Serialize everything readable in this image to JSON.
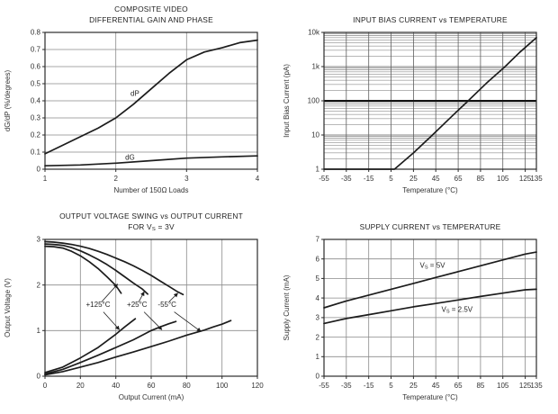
{
  "page": {
    "background": "#ffffff"
  },
  "colors": {
    "curve": "#1c1c1c",
    "grid": "#8a8a8a",
    "grid_minor": "#6f6f6f",
    "grid_bold": "#151515",
    "axis": "#2b2b2b",
    "text": "#333333",
    "title": "#1f1f1f"
  },
  "chart_data": [
    {
      "name": "composite-video-differential-gain-and-phase",
      "type": "line",
      "title_lines": [
        "COMPOSITE VIDEO",
        "DIFFERENTIAL GAIN AND PHASE"
      ],
      "xlabel": "Number of 150Ω Loads",
      "ylabel": "dG/dP (%/degrees)",
      "xscale": "linear",
      "yscale": "linear",
      "xlim": [
        1,
        4
      ],
      "ylim": [
        0,
        0.8
      ],
      "xticks": [
        1,
        2,
        3,
        4
      ],
      "xtick_labels": [
        "1",
        "2",
        "3",
        "4"
      ],
      "yticks": [
        0,
        0.1,
        0.2,
        0.3,
        0.4,
        0.5,
        0.6,
        0.7,
        0.8
      ],
      "ytick_labels": [
        "0",
        "0.1",
        "0.2",
        "0.3",
        "0.4",
        "0.5",
        "0.6",
        "0.7",
        "0.8"
      ],
      "xgrid": [
        2,
        3
      ],
      "ygrid": [
        0.1,
        0.2,
        0.3,
        0.4,
        0.5,
        0.6,
        0.7
      ],
      "series": [
        {
          "name": "dP",
          "points": [
            [
              1,
              0.09
            ],
            [
              1.25,
              0.14
            ],
            [
              1.5,
              0.19
            ],
            [
              1.75,
              0.24
            ],
            [
              2,
              0.3
            ],
            [
              2.25,
              0.38
            ],
            [
              2.5,
              0.47
            ],
            [
              2.75,
              0.56
            ],
            [
              3,
              0.64
            ],
            [
              3.25,
              0.685
            ],
            [
              3.5,
              0.71
            ],
            [
              3.75,
              0.74
            ],
            [
              4,
              0.755
            ]
          ]
        },
        {
          "name": "dG",
          "points": [
            [
              1,
              0.02
            ],
            [
              1.5,
              0.025
            ],
            [
              2,
              0.035
            ],
            [
              2.5,
              0.05
            ],
            [
              3,
              0.065
            ],
            [
              3.5,
              0.072
            ],
            [
              4,
              0.078
            ]
          ]
        }
      ],
      "labels": [
        {
          "text": "dP",
          "x": 2.27,
          "y": 0.43
        },
        {
          "text": "dG",
          "x": 2.2,
          "y": 0.055
        }
      ],
      "arrows": []
    },
    {
      "name": "input-bias-current-vs-temperature",
      "type": "line",
      "title_lines": [
        "INPUT BIAS CURRENT vs TEMPERATURE"
      ],
      "xlabel": "Temperature (°C)",
      "ylabel": "Input Bias Current (pA)",
      "xscale": "linear",
      "yscale": "log",
      "xlim": [
        -55,
        135
      ],
      "ylim": [
        1,
        10000
      ],
      "xticks": [
        -55,
        -35,
        -15,
        5,
        25,
        45,
        65,
        85,
        105,
        125,
        135
      ],
      "xtick_labels": [
        "-55",
        "-35",
        "-15",
        "5",
        "25",
        "45",
        "65",
        "85",
        "105",
        "125",
        "135"
      ],
      "yticks": [
        1,
        10,
        100,
        1000,
        10000
      ],
      "ytick_labels": [
        "1",
        "10",
        "100",
        "1k",
        "10k"
      ],
      "xgrid": [
        -35,
        -15,
        5,
        25,
        45,
        65,
        85,
        105,
        125
      ],
      "ygrid": [
        10,
        1000
      ],
      "ygrid_bold": [
        100
      ],
      "ylog_minor_grid": true,
      "grid_color": "#5f5f5f",
      "series": [
        {
          "name": "input-bias-current",
          "points": [
            [
              -55,
              1
            ],
            [
              8,
              1
            ],
            [
              25,
              3
            ],
            [
              42,
              10
            ],
            [
              58,
              32
            ],
            [
              74,
              100
            ],
            [
              90,
              320
            ],
            [
              107,
              1000
            ],
            [
              120,
              2600
            ],
            [
              135,
              7000
            ]
          ]
        }
      ],
      "labels": [],
      "arrows": []
    },
    {
      "name": "output-voltage-swing-vs-output-current",
      "type": "line",
      "title_lines": [
        "OUTPUT VOLTAGE SWING vs OUTPUT CURRENT",
        "FOR V|S| = 3V"
      ],
      "xlabel": "Output Current (mA)",
      "ylabel": "Output Voltage (V)",
      "xscale": "linear",
      "yscale": "linear",
      "xlim": [
        0,
        120
      ],
      "ylim": [
        0,
        3
      ],
      "xticks": [
        0,
        20,
        40,
        60,
        80,
        100,
        120
      ],
      "xtick_labels": [
        "0",
        "20",
        "40",
        "60",
        "80",
        "100",
        "120"
      ],
      "yticks": [
        0,
        1,
        2,
        3
      ],
      "ytick_labels": [
        "0",
        "1",
        "2",
        "3"
      ],
      "xgrid": [
        20,
        40,
        60,
        80,
        100
      ],
      "ygrid": [
        1,
        2
      ],
      "series": [
        {
          "name": "source-+125C",
          "points": [
            [
              0,
              2.85
            ],
            [
              5,
              2.84
            ],
            [
              10,
              2.81
            ],
            [
              15,
              2.74
            ],
            [
              20,
              2.64
            ],
            [
              25,
              2.51
            ],
            [
              30,
              2.36
            ],
            [
              35,
              2.18
            ],
            [
              40,
              1.99
            ],
            [
              43,
              1.82
            ]
          ]
        },
        {
          "name": "source-+25C",
          "points": [
            [
              0,
              2.9
            ],
            [
              5,
              2.89
            ],
            [
              10,
              2.87
            ],
            [
              15,
              2.82
            ],
            [
              20,
              2.75
            ],
            [
              25,
              2.66
            ],
            [
              30,
              2.56
            ],
            [
              35,
              2.45
            ],
            [
              40,
              2.32
            ],
            [
              45,
              2.18
            ],
            [
              50,
              2.04
            ],
            [
              55,
              1.91
            ],
            [
              58,
              1.8
            ]
          ]
        },
        {
          "name": "source--55C",
          "points": [
            [
              0,
              2.95
            ],
            [
              5,
              2.94
            ],
            [
              10,
              2.92
            ],
            [
              15,
              2.89
            ],
            [
              20,
              2.85
            ],
            [
              25,
              2.8
            ],
            [
              30,
              2.74
            ],
            [
              35,
              2.67
            ],
            [
              40,
              2.59
            ],
            [
              45,
              2.51
            ],
            [
              50,
              2.42
            ],
            [
              55,
              2.32
            ],
            [
              60,
              2.21
            ],
            [
              65,
              2.09
            ],
            [
              70,
              1.97
            ],
            [
              75,
              1.85
            ],
            [
              78,
              1.79
            ]
          ]
        },
        {
          "name": "sink-+125C",
          "points": [
            [
              0,
              0.08
            ],
            [
              10,
              0.2
            ],
            [
              20,
              0.4
            ],
            [
              30,
              0.63
            ],
            [
              40,
              0.92
            ],
            [
              45,
              1.08
            ],
            [
              49,
              1.2
            ],
            [
              51,
              1.26
            ]
          ]
        },
        {
          "name": "sink-+25C",
          "points": [
            [
              0,
              0.05
            ],
            [
              10,
              0.15
            ],
            [
              20,
              0.3
            ],
            [
              30,
              0.46
            ],
            [
              40,
              0.63
            ],
            [
              50,
              0.8
            ],
            [
              55,
              0.9
            ],
            [
              60,
              1.0
            ],
            [
              65,
              1.08
            ],
            [
              70,
              1.15
            ],
            [
              74,
              1.2
            ]
          ]
        },
        {
          "name": "sink--55C",
          "points": [
            [
              0,
              0.03
            ],
            [
              10,
              0.1
            ],
            [
              20,
              0.2
            ],
            [
              30,
              0.3
            ],
            [
              40,
              0.42
            ],
            [
              50,
              0.53
            ],
            [
              60,
              0.65
            ],
            [
              70,
              0.77
            ],
            [
              80,
              0.9
            ],
            [
              90,
              1.01
            ],
            [
              95,
              1.08
            ],
            [
              100,
              1.14
            ],
            [
              105,
              1.22
            ]
          ]
        }
      ],
      "labels": [
        {
          "text": "+125°C",
          "x": 30,
          "y": 1.52
        },
        {
          "text": "+25°C",
          "x": 52,
          "y": 1.52
        },
        {
          "text": "-55°C",
          "x": 69,
          "y": 1.52
        }
      ],
      "arrows": [
        {
          "x1": 32,
          "y1": 1.63,
          "x2": 41,
          "y2": 2.02
        },
        {
          "x1": 33,
          "y1": 1.41,
          "x2": 42,
          "y2": 1.02
        },
        {
          "x1": 53,
          "y1": 1.63,
          "x2": 56,
          "y2": 1.85
        },
        {
          "x1": 56,
          "y1": 1.41,
          "x2": 66,
          "y2": 1.02
        },
        {
          "x1": 70,
          "y1": 1.63,
          "x2": 75,
          "y2": 1.82
        },
        {
          "x1": 73,
          "y1": 1.41,
          "x2": 88,
          "y2": 0.98
        }
      ]
    },
    {
      "name": "supply-current-vs-temperature",
      "type": "line",
      "title_lines": [
        "SUPPLY CURRENT vs TEMPERATURE"
      ],
      "xlabel": "Temperature (°C)",
      "ylabel": "Supply Current (mA)",
      "xscale": "linear",
      "yscale": "linear",
      "xlim": [
        -55,
        135
      ],
      "ylim": [
        0,
        7
      ],
      "xticks": [
        -55,
        -35,
        -15,
        5,
        25,
        45,
        65,
        85,
        105,
        125,
        135
      ],
      "xtick_labels": [
        "-55",
        "-35",
        "-15",
        "5",
        "25",
        "45",
        "65",
        "85",
        "105",
        "125",
        "135"
      ],
      "yticks": [
        0,
        1,
        2,
        3,
        4,
        5,
        6,
        7
      ],
      "ytick_labels": [
        "0",
        "1",
        "2",
        "3",
        "4",
        "5",
        "6",
        "7"
      ],
      "xgrid": [
        -35,
        -15,
        5,
        25,
        45,
        65,
        85,
        105,
        125
      ],
      "ygrid": [
        1,
        2,
        3,
        4,
        5,
        6
      ],
      "series": [
        {
          "name": "VS-5V",
          "points": [
            [
              -55,
              3.5
            ],
            [
              -35,
              3.85
            ],
            [
              -15,
              4.15
            ],
            [
              5,
              4.45
            ],
            [
              25,
              4.75
            ],
            [
              45,
              5.05
            ],
            [
              65,
              5.35
            ],
            [
              85,
              5.65
            ],
            [
              105,
              5.95
            ],
            [
              125,
              6.25
            ],
            [
              135,
              6.35
            ]
          ]
        },
        {
          "name": "VS-2.5V",
          "points": [
            [
              -55,
              2.7
            ],
            [
              -35,
              2.95
            ],
            [
              -15,
              3.15
            ],
            [
              5,
              3.35
            ],
            [
              25,
              3.55
            ],
            [
              45,
              3.72
            ],
            [
              65,
              3.9
            ],
            [
              85,
              4.08
            ],
            [
              105,
              4.25
            ],
            [
              125,
              4.42
            ],
            [
              135,
              4.45
            ]
          ]
        }
      ],
      "labels": [
        {
          "text": "V|S| = 5V",
          "x": 42,
          "y": 5.55
        },
        {
          "text": "V|S| = 2.5V",
          "x": 64,
          "y": 3.3
        }
      ],
      "arrows": []
    }
  ]
}
